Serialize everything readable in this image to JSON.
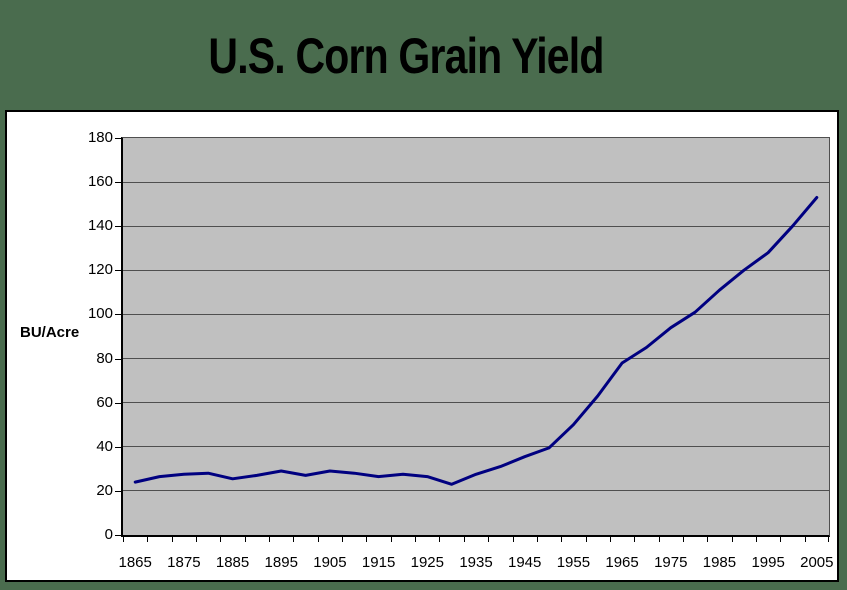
{
  "background_color": "#4a6c4e",
  "chart_data": {
    "type": "line",
    "title": "U.S. Corn Grain Yield",
    "ylabel": "BU/Acre",
    "xlabel": "",
    "x": [
      1865,
      1870,
      1875,
      1880,
      1885,
      1890,
      1895,
      1900,
      1905,
      1910,
      1915,
      1920,
      1925,
      1930,
      1935,
      1940,
      1945,
      1950,
      1955,
      1960,
      1965,
      1970,
      1975,
      1980,
      1985,
      1990,
      1995,
      2000,
      2005
    ],
    "values": [
      24,
      26.5,
      27.5,
      28,
      25.5,
      27,
      29,
      27,
      29,
      28,
      26.5,
      27.5,
      26.5,
      23,
      27.5,
      31,
      35.5,
      39.5,
      50,
      63,
      78,
      85,
      94,
      101,
      111,
      120,
      128,
      140,
      153
    ],
    "ylim": [
      0,
      180
    ],
    "ytick_step": 20,
    "xtick_labels": [
      "1865",
      "1875",
      "1885",
      "1895",
      "1905",
      "1915",
      "1925",
      "1935",
      "1945",
      "1955",
      "1965",
      "1975",
      "1985",
      "1995",
      "2005"
    ],
    "grid": "horizontal",
    "legend": "none",
    "colors": {
      "line": "#000080",
      "plot_bg": "#c0c0c0",
      "grid": "#4f4f4f",
      "chart_bg": "#ffffff",
      "frame_border": "#000000",
      "text": "#000000"
    }
  }
}
